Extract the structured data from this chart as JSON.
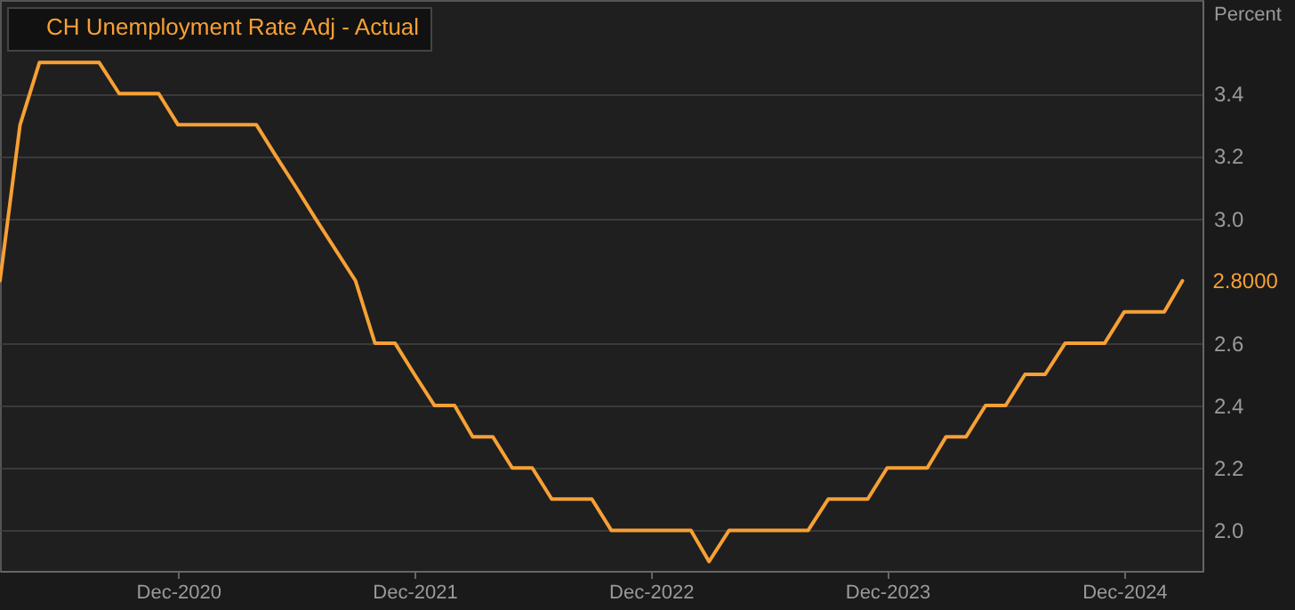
{
  "chart_data": {
    "type": "line",
    "x": [
      "2020-03",
      "2020-04",
      "2020-05",
      "2020-06",
      "2020-07",
      "2020-08",
      "2020-09",
      "2020-10",
      "2020-11",
      "2020-12",
      "2021-01",
      "2021-02",
      "2021-03",
      "2021-04",
      "2021-05",
      "2021-06",
      "2021-07",
      "2021-08",
      "2021-09",
      "2021-10",
      "2021-11",
      "2021-12",
      "2022-01",
      "2022-02",
      "2022-03",
      "2022-04",
      "2022-05",
      "2022-06",
      "2022-07",
      "2022-08",
      "2022-09",
      "2022-10",
      "2022-11",
      "2022-12",
      "2023-01",
      "2023-02",
      "2023-03",
      "2023-04",
      "2023-05",
      "2023-06",
      "2023-07",
      "2023-08",
      "2023-09",
      "2023-10",
      "2023-11",
      "2023-12",
      "2024-01",
      "2024-02",
      "2024-03",
      "2024-04",
      "2024-05",
      "2024-06",
      "2024-07",
      "2024-08",
      "2024-09",
      "2024-10",
      "2024-11",
      "2024-12",
      "2025-01",
      "2025-02",
      "2025-03"
    ],
    "series": [
      {
        "name": "CH Unemployment Rate Adj - Actual",
        "color": "#f7a035",
        "values": [
          2.8,
          3.3,
          3.5,
          3.5,
          3.5,
          3.5,
          3.4,
          3.4,
          3.4,
          3.3,
          3.3,
          3.3,
          3.3,
          3.3,
          3.2,
          3.1,
          3.0,
          2.9,
          2.8,
          2.6,
          2.6,
          2.5,
          2.4,
          2.4,
          2.3,
          2.3,
          2.2,
          2.2,
          2.1,
          2.1,
          2.1,
          2.0,
          2.0,
          2.0,
          2.0,
          2.0,
          1.9,
          2.0,
          2.0,
          2.0,
          2.0,
          2.0,
          2.1,
          2.1,
          2.1,
          2.2,
          2.2,
          2.2,
          2.3,
          2.3,
          2.4,
          2.4,
          2.5,
          2.5,
          2.6,
          2.6,
          2.6,
          2.7,
          2.7,
          2.7,
          2.8
        ]
      }
    ],
    "ylabel": "Percent",
    "xlim": [
      "2020-03",
      "2025-04"
    ],
    "xticks": [
      {
        "value": "2020-12",
        "label": "Dec-2020"
      },
      {
        "value": "2021-12",
        "label": "Dec-2021"
      },
      {
        "value": "2022-12",
        "label": "Dec-2022"
      },
      {
        "value": "2023-12",
        "label": "Dec-2023"
      },
      {
        "value": "2024-12",
        "label": "Dec-2024"
      }
    ],
    "ylim": [
      1.87,
      3.7
    ],
    "yticks": [
      {
        "value": 2,
        "label": "2.0"
      },
      {
        "value": 2.2,
        "label": "2.2"
      },
      {
        "value": 2.4,
        "label": "2.4"
      },
      {
        "value": 2.6,
        "label": "2.6"
      },
      {
        "value": 3,
        "label": "3.0"
      },
      {
        "value": 3.2,
        "label": "3.2"
      },
      {
        "value": 3.4,
        "label": "3.4"
      }
    ],
    "annotations": [
      {
        "text": "2.8000",
        "x": "2025-03",
        "y": 2.8
      }
    ],
    "grid": "y",
    "legend": "top left",
    "marker": "none",
    "line_style": "solid"
  }
}
